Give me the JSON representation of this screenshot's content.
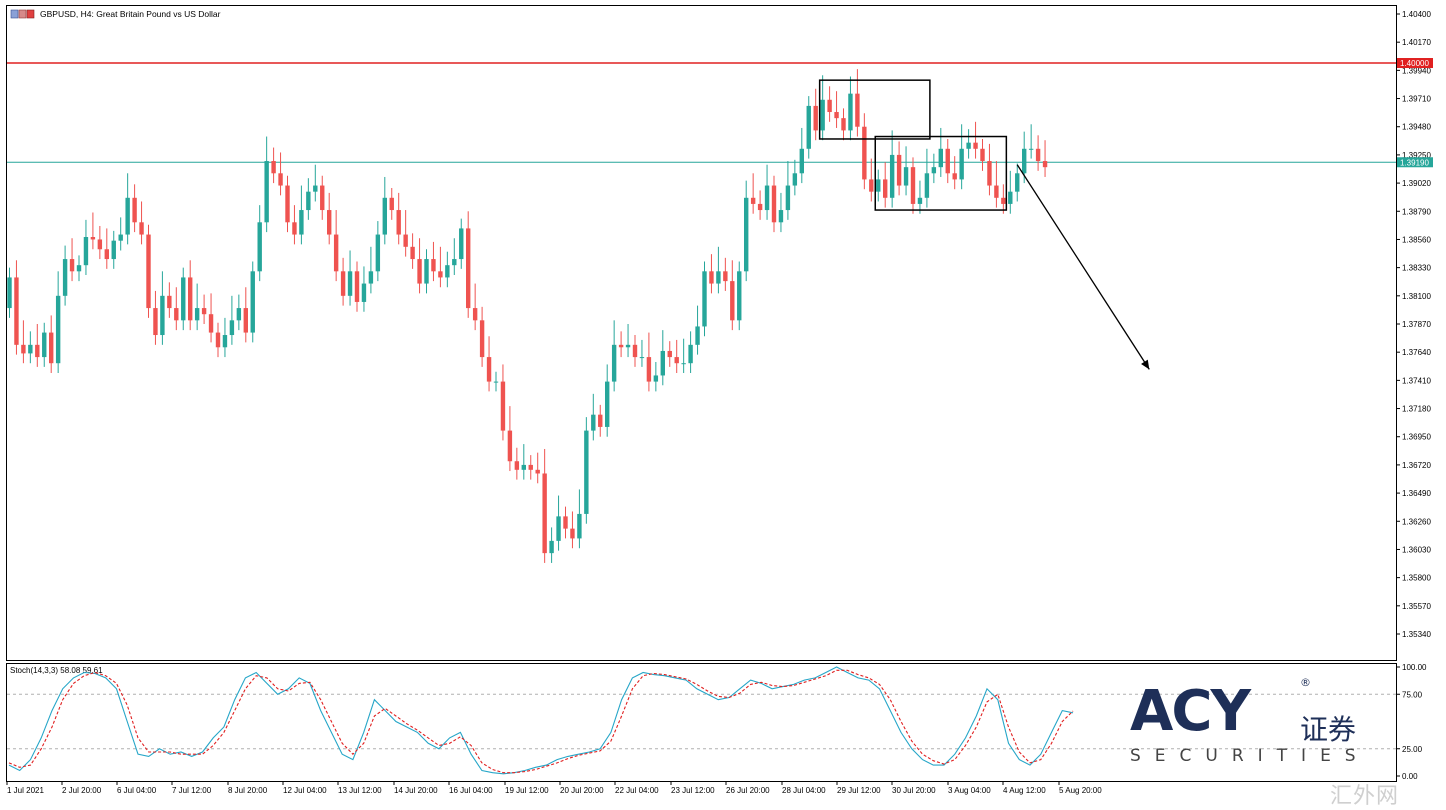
{
  "header": {
    "symbol_line": "GBPUSD, H4:  Great Britain Pound vs US Dollar",
    "icon": "chart-window-icon"
  },
  "price_lines": {
    "resistance": {
      "value": 1.4,
      "label": "1.40000",
      "color": "#e02020"
    },
    "current": {
      "value": 1.3919,
      "label": "1.39190",
      "color": "#26a69a"
    }
  },
  "colors": {
    "bull": "#26a69a",
    "bear": "#ef5350",
    "stoch_main": "#26a6c8",
    "stoch_signal": "#e02020"
  },
  "watermark": {
    "brand": "ACY",
    "brand_cn": "证券",
    "securities": "SECURITIES",
    "registered": "®",
    "site_cn": "汇外网"
  },
  "chart_data": [
    {
      "type": "candlestick",
      "title": "GBPUSD, H4:  Great Britain Pound vs US Dollar",
      "ylim": [
        1.352,
        1.405
      ],
      "y_ticks": [
        "1.40400",
        "1.40170",
        "1.39940",
        "1.39710",
        "1.39480",
        "1.39250",
        "1.39020",
        "1.38790",
        "1.38560",
        "1.38330",
        "1.38100",
        "1.37870",
        "1.37640",
        "1.37410",
        "1.37180",
        "1.36950",
        "1.36720",
        "1.36490",
        "1.36260",
        "1.36030",
        "1.35800",
        "1.35570",
        "1.35340"
      ],
      "x_ticks": [
        "1 Jul 2021",
        "2 Jul 20:00",
        "6 Jul 04:00",
        "7 Jul 12:00",
        "8 Jul 20:00",
        "12 Jul 04:00",
        "13 Jul 12:00",
        "14 Jul 20:00",
        "16 Jul 04:00",
        "19 Jul 12:00",
        "20 Jul 20:00",
        "22 Jul 04:00",
        "23 Jul 12:00",
        "26 Jul 20:00",
        "28 Jul 04:00",
        "29 Jul 12:00",
        "30 Jul 20:00",
        "3 Aug 04:00",
        "4 Aug 12:00",
        "5 Aug 20:00"
      ],
      "closes": [
        1.3825,
        1.377,
        1.3763,
        1.377,
        1.376,
        1.378,
        1.3755,
        1.381,
        1.384,
        1.383,
        1.3835,
        1.3858,
        1.3856,
        1.3848,
        1.384,
        1.3855,
        1.386,
        1.389,
        1.387,
        1.386,
        1.38,
        1.3778,
        1.381,
        1.38,
        1.379,
        1.3825,
        1.379,
        1.38,
        1.3795,
        1.378,
        1.3768,
        1.3778,
        1.379,
        1.38,
        1.378,
        1.383,
        1.387,
        1.392,
        1.391,
        1.39,
        1.387,
        1.386,
        1.388,
        1.3895,
        1.39,
        1.388,
        1.386,
        1.383,
        1.381,
        1.383,
        1.3805,
        1.382,
        1.383,
        1.386,
        1.389,
        1.388,
        1.386,
        1.385,
        1.384,
        1.382,
        1.384,
        1.383,
        1.3825,
        1.3835,
        1.384,
        1.3865,
        1.38,
        1.379,
        1.376,
        1.374,
        1.374,
        1.37,
        1.3675,
        1.3668,
        1.3672,
        1.3668,
        1.3665,
        1.36,
        1.361,
        1.363,
        1.362,
        1.3612,
        1.3632,
        1.37,
        1.3713,
        1.3703,
        1.374,
        1.377,
        1.3768,
        1.377,
        1.376,
        1.376,
        1.374,
        1.3745,
        1.3765,
        1.376,
        1.3755,
        1.3755,
        1.377,
        1.3785,
        1.383,
        1.382,
        1.383,
        1.3822,
        1.379,
        1.383,
        1.389,
        1.3885,
        1.388,
        1.39,
        1.387,
        1.388,
        1.39,
        1.391,
        1.393,
        1.3965,
        1.3945,
        1.397,
        1.396,
        1.3955,
        1.3945,
        1.3975,
        1.3948,
        1.3905,
        1.3895,
        1.3905,
        1.389,
        1.3925,
        1.39,
        1.3915,
        1.3885,
        1.389,
        1.391,
        1.3915,
        1.393,
        1.391,
        1.3905,
        1.393,
        1.3935,
        1.393,
        1.392,
        1.39,
        1.389,
        1.3885,
        1.3895,
        1.391,
        1.393,
        1.393,
        1.392,
        1.3915
      ],
      "opens_start": 1.38,
      "annotations": [
        {
          "type": "box",
          "x_bars": [
            117,
            132
          ],
          "y_range": [
            1.3938,
            1.3986
          ]
        },
        {
          "type": "box",
          "x_bars": [
            125,
            143
          ],
          "y_range": [
            1.388,
            1.394
          ]
        },
        {
          "type": "arrow",
          "from_bar": 145,
          "from_y": 1.3917,
          "to_bar": 164,
          "to_y": 1.375
        }
      ]
    },
    {
      "type": "line",
      "title": "Stoch(14,3,3) 58.08 59.61",
      "ylim": [
        0,
        100
      ],
      "y_ticks": [
        "100.00",
        "75.00",
        "25.00",
        "0.00"
      ],
      "levels": [
        75,
        25
      ],
      "series": [
        {
          "name": "main",
          "style": "solid",
          "values": [
            10,
            5,
            15,
            35,
            60,
            80,
            90,
            95,
            94,
            90,
            80,
            50,
            20,
            18,
            25,
            20,
            22,
            18,
            22,
            35,
            45,
            70,
            90,
            95,
            85,
            75,
            80,
            90,
            85,
            60,
            40,
            20,
            15,
            40,
            70,
            60,
            50,
            45,
            40,
            30,
            25,
            35,
            40,
            20,
            5,
            3,
            2,
            3,
            5,
            8,
            10,
            15,
            18,
            20,
            22,
            25,
            40,
            70,
            90,
            95,
            93,
            92,
            90,
            88,
            80,
            75,
            70,
            72,
            80,
            88,
            85,
            80,
            82,
            84,
            88,
            90,
            95,
            100,
            95,
            90,
            88,
            80,
            60,
            40,
            25,
            15,
            10,
            10,
            20,
            35,
            55,
            80,
            70,
            30,
            15,
            10,
            20,
            40,
            60,
            58
          ]
        },
        {
          "name": "signal",
          "style": "dashed",
          "values": [
            12,
            8,
            10,
            25,
            45,
            70,
            85,
            92,
            95,
            92,
            85,
            65,
            35,
            22,
            22,
            22,
            20,
            20,
            20,
            28,
            40,
            60,
            80,
            92,
            90,
            80,
            78,
            85,
            86,
            70,
            50,
            30,
            20,
            30,
            55,
            62,
            55,
            48,
            42,
            35,
            28,
            30,
            36,
            28,
            12,
            6,
            3,
            3,
            4,
            6,
            9,
            12,
            16,
            19,
            21,
            23,
            32,
            55,
            80,
            92,
            94,
            93,
            91,
            89,
            84,
            78,
            73,
            72,
            76,
            84,
            86,
            83,
            82,
            83,
            86,
            89,
            92,
            97,
            97,
            93,
            90,
            84,
            70,
            50,
            32,
            20,
            14,
            11,
            15,
            28,
            45,
            68,
            75,
            45,
            22,
            12,
            15,
            30,
            50,
            59.61
          ]
        }
      ]
    }
  ]
}
